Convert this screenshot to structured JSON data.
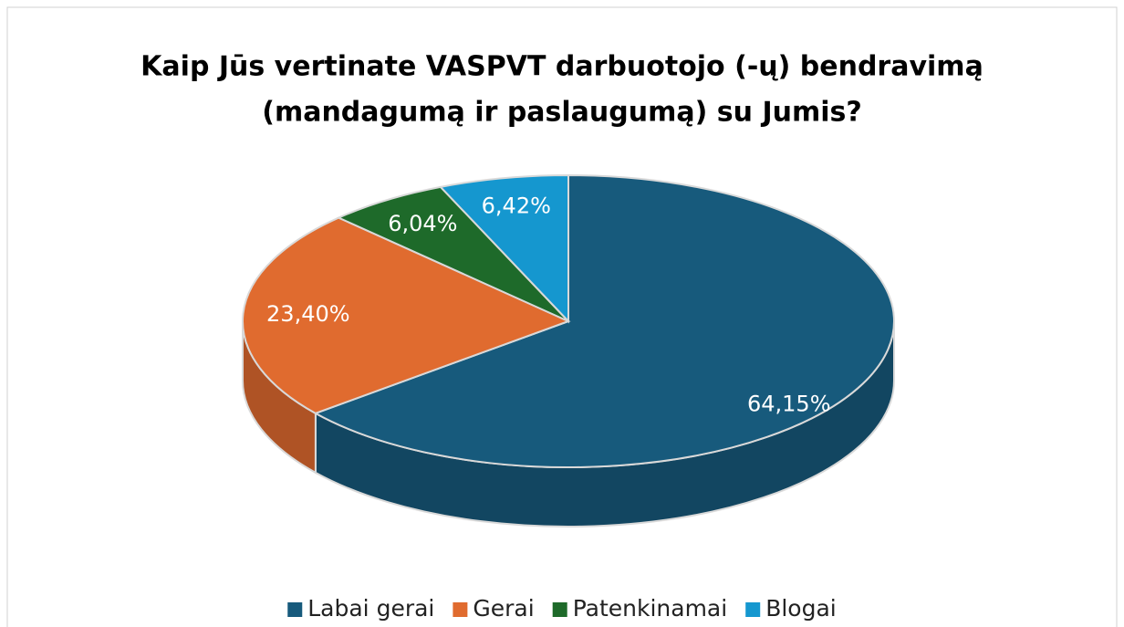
{
  "chart_data": {
    "type": "pie3d",
    "title": [
      "Kaip Jūs vertinate VASPVT darbuotojo (-ų) bendravimą",
      "(mandagumą ir paslaugumą) su Jumis?"
    ],
    "categories": [
      "Labai gerai",
      "Gerai",
      "Patenkinamai",
      "Blogai"
    ],
    "values": [
      64.15,
      23.4,
      6.04,
      6.42
    ],
    "value_labels": [
      "64,15%",
      "23,40%",
      "6,04%",
      "6,42%"
    ],
    "colors": [
      "#175a7c",
      "#e06b2f",
      "#1e6a2a",
      "#1597cf"
    ],
    "legend": "bottom"
  }
}
